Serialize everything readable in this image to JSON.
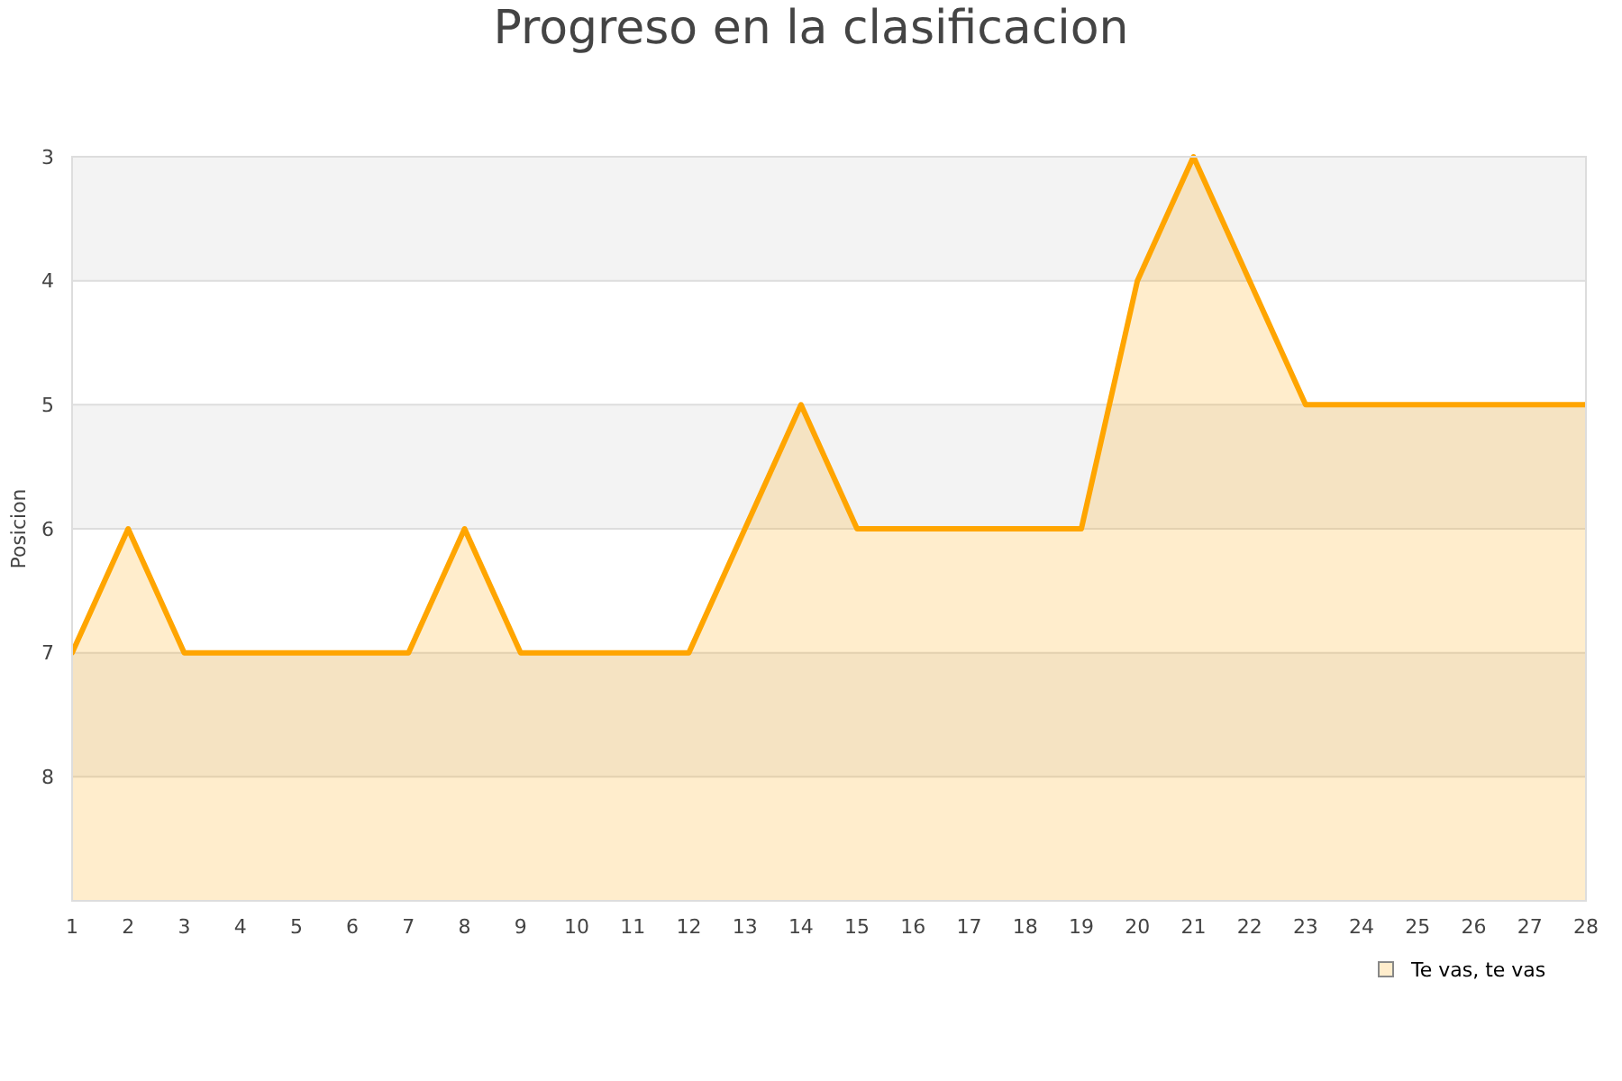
{
  "chart_data": {
    "type": "area",
    "title": "Progreso en la clasificacion",
    "ylabel": "Posicion",
    "x": [
      1,
      2,
      3,
      4,
      5,
      6,
      7,
      8,
      9,
      10,
      11,
      12,
      13,
      14,
      15,
      16,
      17,
      18,
      19,
      20,
      21,
      22,
      23,
      24,
      25,
      26,
      27,
      28
    ],
    "series": [
      {
        "name": "Te vas, te vas",
        "color": "#ffa500",
        "values": [
          7,
          6,
          7,
          7,
          7,
          7,
          7,
          6,
          7,
          7,
          7,
          7,
          6,
          5,
          6,
          6,
          6,
          6,
          6,
          4,
          3,
          4,
          5,
          5,
          5,
          5,
          5,
          5
        ]
      }
    ],
    "xlim": [
      1,
      28
    ],
    "xticks": [
      1,
      2,
      3,
      4,
      5,
      6,
      7,
      8,
      9,
      10,
      11,
      12,
      13,
      14,
      15,
      16,
      17,
      18,
      19,
      20,
      21,
      22,
      23,
      24,
      25,
      26,
      27,
      28
    ],
    "ylim": [
      9,
      3
    ],
    "yticks": [
      3,
      4,
      5,
      6,
      7,
      8,
      {
        "value": 9,
        "label": null
      }
    ],
    "bands": [
      {
        "axis": "y",
        "from": 3,
        "to": 4,
        "color": "#f3f3f3"
      },
      {
        "axis": "y",
        "from": 5,
        "to": 6,
        "color": "#f3f3f3"
      },
      {
        "axis": "y",
        "from": 7,
        "to": 8,
        "color": "#f3f3f3"
      }
    ],
    "grid": "y",
    "legend": "bottom right"
  }
}
